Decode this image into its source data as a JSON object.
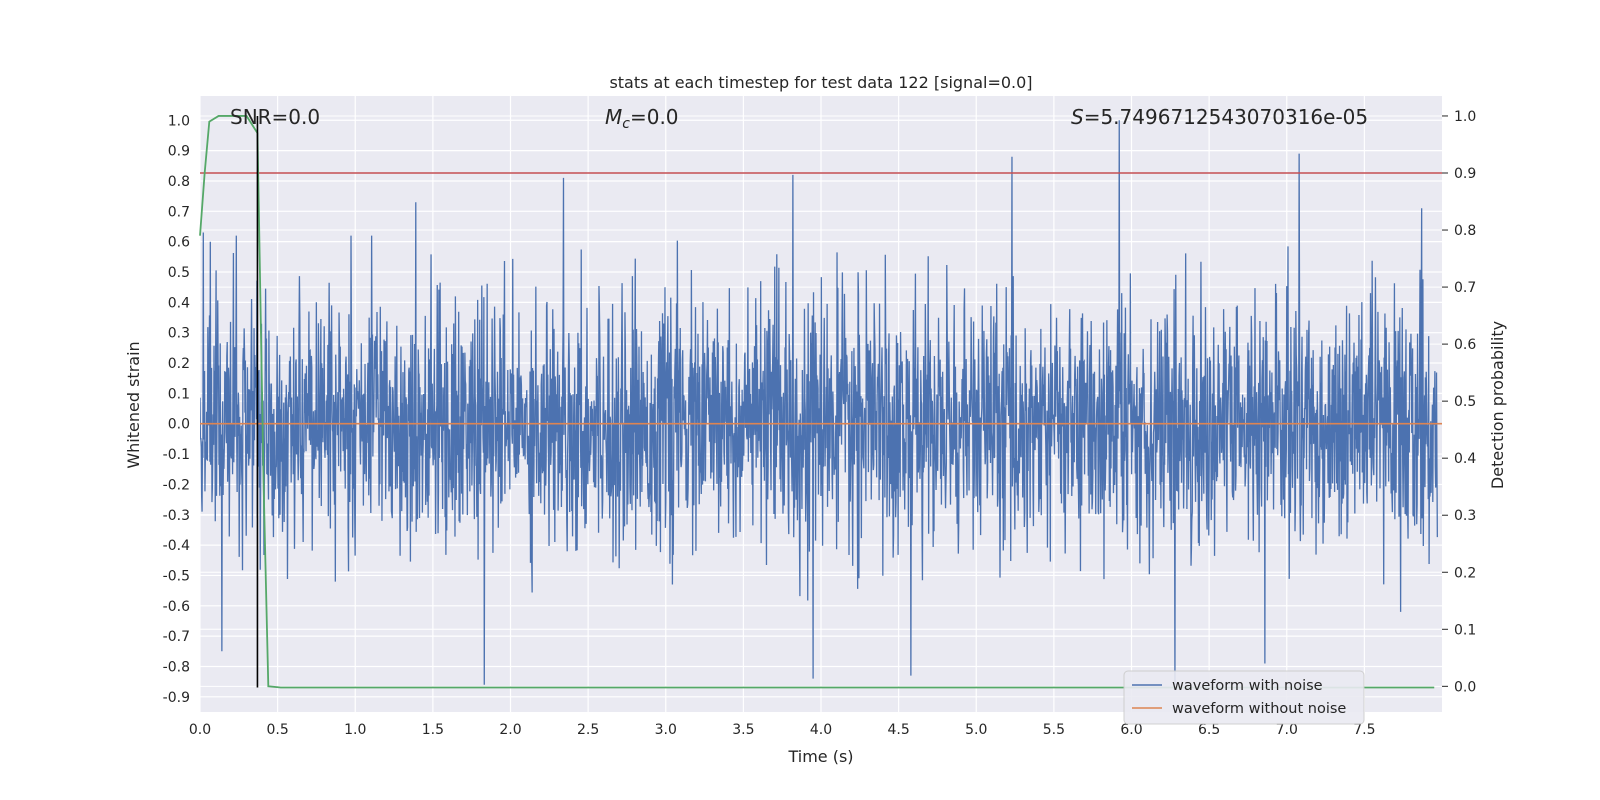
{
  "chart_data": {
    "type": "line",
    "title": "stats at each timestep for test data 122 [signal=0.0]",
    "xlabel": "Time (s)",
    "ylabel_left": "Whitened strain",
    "ylabel_right": "Detection probability",
    "xlim": [
      0.0,
      8.0
    ],
    "ylim_left": [
      -0.95,
      1.08
    ],
    "ylim_right": [
      -0.045,
      1.035
    ],
    "x_ticks": [
      "0.0",
      "0.5",
      "1.0",
      "1.5",
      "2.0",
      "2.5",
      "3.0",
      "3.5",
      "4.0",
      "4.5",
      "5.0",
      "5.5",
      "6.0",
      "6.5",
      "7.0",
      "7.5"
    ],
    "y_left_ticks": [
      "1.0",
      "0.9",
      "0.8",
      "0.7",
      "0.6",
      "0.5",
      "0.4",
      "0.3",
      "0.2",
      "0.1",
      "0.0",
      "-0.1",
      "-0.2",
      "-0.3",
      "-0.4",
      "-0.5",
      "-0.6",
      "-0.7",
      "-0.8",
      "-0.9"
    ],
    "y_right_ticks": [
      "1.0",
      "0.9",
      "0.8",
      "0.7",
      "0.6",
      "0.5",
      "0.4",
      "0.3",
      "0.2",
      "0.1",
      "0.0"
    ],
    "annotations": {
      "snr": "SNR=0.0",
      "mc_symbol": "M",
      "mc_sub": "c",
      "mc_value": "=0.0",
      "s_symbol": "S",
      "s_value": "=5.7496712543070316e-05"
    },
    "grid": true,
    "legend_placement": "lower-right",
    "series": [
      {
        "name": "waveform with noise",
        "axis": "left",
        "color": "#4c72b0",
        "description_style": "dense noise",
        "approx_range": [
          -0.86,
          1.0
        ],
        "peaks": [
          {
            "x": 0.02,
            "y": 0.63
          },
          {
            "x": 0.14,
            "y": -0.75
          },
          {
            "x": 1.39,
            "y": 0.73
          },
          {
            "x": 1.83,
            "y": -0.86
          },
          {
            "x": 2.34,
            "y": 0.81
          },
          {
            "x": 3.82,
            "y": 0.82
          },
          {
            "x": 3.95,
            "y": -0.84
          },
          {
            "x": 4.58,
            "y": -0.83
          },
          {
            "x": 5.23,
            "y": 0.88
          },
          {
            "x": 5.92,
            "y": 1.0
          },
          {
            "x": 6.28,
            "y": -0.86
          },
          {
            "x": 6.86,
            "y": -0.79
          },
          {
            "x": 7.08,
            "y": 0.89
          },
          {
            "x": 7.87,
            "y": 0.71
          }
        ]
      },
      {
        "name": "waveform without noise",
        "axis": "left",
        "color": "#dd8452",
        "x": [
          0.0,
          8.0
        ],
        "y": [
          0.0,
          0.0
        ]
      },
      {
        "name": "",
        "axis": "right",
        "color": "#55a868",
        "x": [
          0.0,
          0.03,
          0.06,
          0.12,
          0.25,
          0.3,
          0.37,
          0.38,
          0.41,
          0.44,
          0.52,
          1.0,
          3.0,
          5.0,
          7.0,
          7.95
        ],
        "y": [
          0.79,
          0.9,
          0.99,
          1.0,
          1.0,
          1.0,
          0.97,
          0.82,
          0.35,
          0.0,
          -0.002,
          -0.002,
          -0.002,
          -0.002,
          -0.002,
          -0.002
        ]
      }
    ],
    "threshold_line": {
      "axis": "right",
      "y": 0.9,
      "color": "#c44e52"
    },
    "marker_line": {
      "x": 0.37,
      "color": "#000000",
      "y_range": [
        -0.002,
        1.0
      ]
    }
  },
  "legend": {
    "noise_label": "waveform with noise",
    "clean_label": "waveform without noise"
  }
}
